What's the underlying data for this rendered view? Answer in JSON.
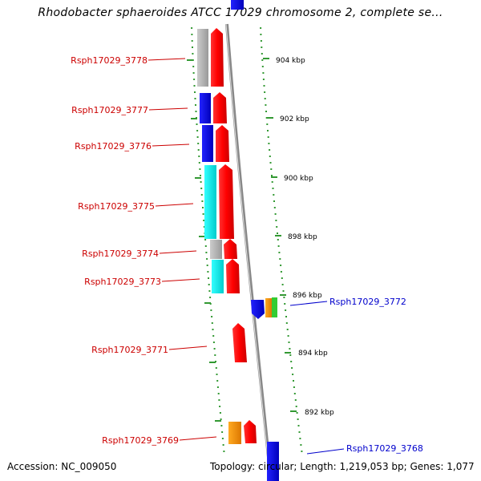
{
  "title": "Rhodobacter sphaeroides ATCC 17029 chromosome 2, complete se...",
  "accession": "Accession: NC_009050",
  "summary": "Topology: circular; Length: 1,219,053 bp; Genes: 1,077",
  "scale_labels": [
    "904 kbp",
    "902 kbp",
    "900 kbp",
    "898 kbp",
    "896 kbp",
    "894 kbp",
    "892 kbp"
  ],
  "genes": [
    {
      "name": "Rsph17029_3778",
      "label_color": "#cc0000"
    },
    {
      "name": "Rsph17029_3777",
      "label_color": "#cc0000"
    },
    {
      "name": "Rsph17029_3776",
      "label_color": "#cc0000"
    },
    {
      "name": "Rsph17029_3775",
      "label_color": "#cc0000"
    },
    {
      "name": "Rsph17029_3774",
      "label_color": "#cc0000"
    },
    {
      "name": "Rsph17029_3773",
      "label_color": "#cc0000"
    },
    {
      "name": "Rsph17029_3772",
      "label_color": "#0000cc"
    },
    {
      "name": "Rsph17029_3771",
      "label_color": "#cc0000"
    },
    {
      "name": "Rsph17029_3769",
      "label_color": "#cc0000"
    },
    {
      "name": "Rsph17029_3768",
      "label_color": "#0000cc"
    }
  ],
  "colors": {
    "backbone": "#808080",
    "scale_dots": "#339933",
    "gene_red": "#ff0000",
    "gene_blue": "#0000ff",
    "gene_cyan": "#00ffff",
    "gene_gray": "#bbbbbb",
    "gene_orange": "#ff9900",
    "gene_green": "#33cc33"
  }
}
